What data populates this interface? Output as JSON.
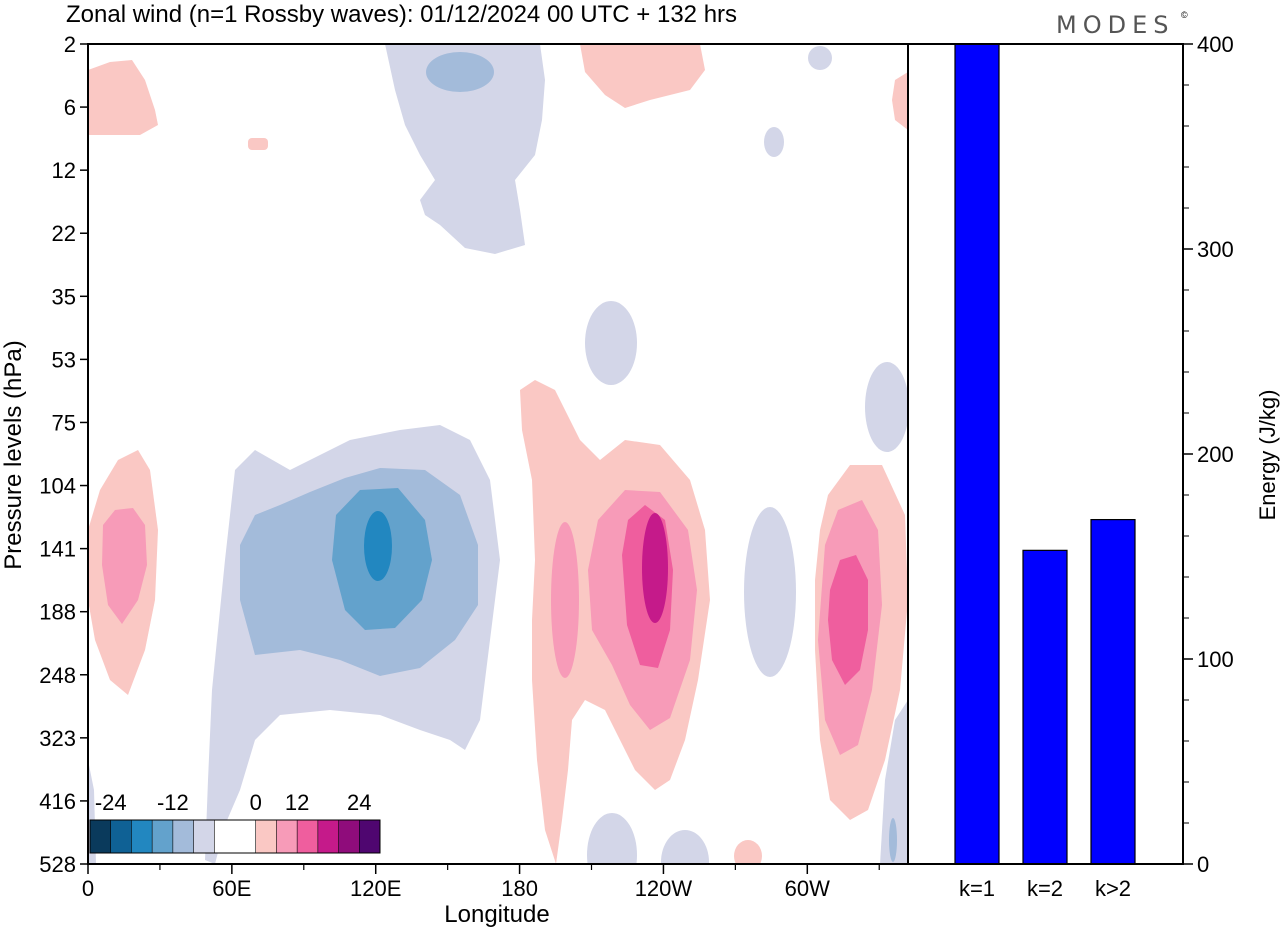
{
  "title": "Zonal wind (n=1 Rossby waves):  01/12/2024  00 UTC  + 132 hrs",
  "logo": "MODES",
  "logo_mark": "©",
  "chart_data": [
    {
      "type": "heatmap",
      "xlabel": "Longitude",
      "ylabel": "Pressure levels (hPa)",
      "x_ticks": [
        {
          "label": "0",
          "lon": 0
        },
        {
          "label": "60E",
          "lon": 60
        },
        {
          "label": "120E",
          "lon": 120
        },
        {
          "label": "180",
          "lon": 180
        },
        {
          "label": "120W",
          "lon": 240
        },
        {
          "label": "60W",
          "lon": 300
        }
      ],
      "xlim": [
        0,
        342
      ],
      "y_levels": [
        "2",
        "6",
        "12",
        "22",
        "35",
        "53",
        "75",
        "104",
        "141",
        "188",
        "248",
        "323",
        "416",
        "528"
      ],
      "y_scale": "level index (top = 2 hPa, bottom = 528 hPa)",
      "colorbar": {
        "labels": [
          "-24",
          "-12",
          "0",
          "12",
          "24"
        ],
        "colors": [
          "#0a3a5c",
          "#0f6195",
          "#2287c0",
          "#63a2cc",
          "#a3bbda",
          "#d3d6e8",
          "#ffffff",
          "#ffffff",
          "#fac8c4",
          "#f79bb8",
          "#ef5e9e",
          "#c51a8a",
          "#8f0c7b",
          "#4f0670"
        ]
      },
      "features": [
        {
          "sign": "negative",
          "center_lon": 120,
          "center_level": "141",
          "peak": -20
        },
        {
          "sign": "negative",
          "center_lon": 155,
          "center_level": "6",
          "peak": -8
        },
        {
          "sign": "positive",
          "center_lon": 236,
          "center_level": "141",
          "peak": 18
        },
        {
          "sign": "positive",
          "center_lon": 315,
          "center_level": "188",
          "peak": 14
        },
        {
          "sign": "positive",
          "center_lon": 15,
          "center_level": "141",
          "peak": 8
        }
      ]
    },
    {
      "type": "bar",
      "categories": [
        "k=1",
        "k=2",
        "k>2"
      ],
      "values": [
        400,
        153,
        168
      ],
      "ylabel": "Energy (J/kg)",
      "ylim": [
        0,
        400
      ],
      "y_ticks": [
        0,
        100,
        200,
        300,
        400
      ],
      "bar_color": "#0000ff"
    }
  ]
}
